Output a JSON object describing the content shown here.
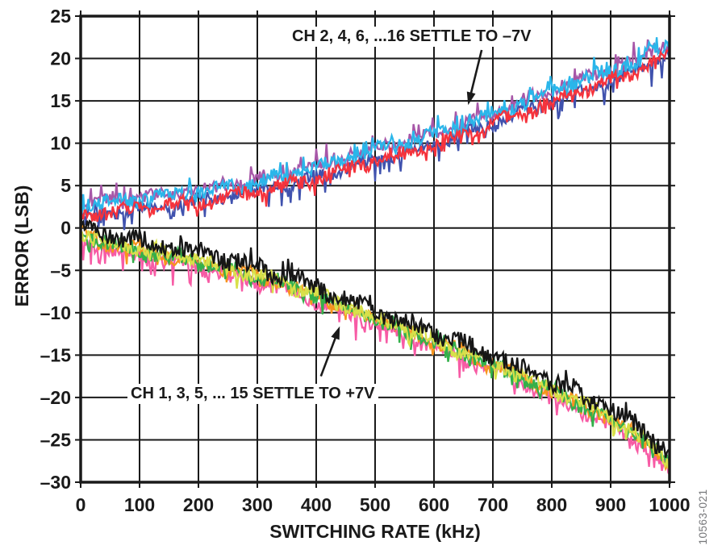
{
  "figure_number": "10563-021",
  "chart_data": {
    "type": "line",
    "title": "",
    "xlabel": "SWITCHING RATE (kHz)",
    "ylabel": "ERROR (LSB)",
    "xlim": [
      0,
      1000
    ],
    "ylim": [
      -30,
      25
    ],
    "grid": true,
    "x_ticks": [
      0,
      100,
      200,
      300,
      400,
      500,
      600,
      700,
      800,
      900,
      1000
    ],
    "x_tick_labels": [
      "0",
      "100",
      "200",
      "300",
      "400",
      "500",
      "600",
      "700",
      "800",
      "900",
      "1000"
    ],
    "y_ticks": [
      25,
      20,
      15,
      10,
      5,
      0,
      -5,
      -10,
      -15,
      -20,
      -25,
      -30
    ],
    "y_tick_labels": [
      "25",
      "20",
      "15",
      "10",
      "5",
      "0",
      "–5",
      "–10",
      "–15",
      "–20",
      "–25",
      "–30"
    ],
    "annotations": [
      {
        "name": "even-channels-label",
        "text": "CH 2, 4, 6, ...16 SETTLE TO –7V",
        "arrow_from_xy": [
          681,
          21.0
        ],
        "arrow_to_xy": [
          658,
          14.5
        ]
      },
      {
        "name": "odd-channels-label",
        "text": "CH 1, 3, 5, ... 15 SETTLE TO +7V",
        "arrow_from_xy": [
          408,
          -17.5
        ],
        "arrow_to_xy": [
          440,
          -11.6
        ]
      }
    ],
    "samples_per_trace": 460,
    "groups": [
      {
        "name": "ch-even-settle-to-minus-7v",
        "description": "CH 2, 4, 6, ...16 SETTLE TO –7V",
        "anchor_x_khz": [
          0,
          50,
          100,
          200,
          300,
          400,
          500,
          600,
          700,
          800,
          900,
          950,
          1000
        ],
        "anchor_y_lsb": [
          2.6,
          2.9,
          3.2,
          4.1,
          5.3,
          6.9,
          9.0,
          10.8,
          13.2,
          16.0,
          18.4,
          19.6,
          21.7
        ],
        "traces": [
          {
            "name": "trace-blue",
            "color": "#4052ae",
            "offset": -0.9,
            "noise": 0.75,
            "spike": 2.0,
            "spike_prob": 0.12,
            "spike_dir": -1
          },
          {
            "name": "trace-purple",
            "color": "#a757a8",
            "offset": 0.3,
            "noise": 0.75,
            "spike": 1.6,
            "spike_prob": 0.12,
            "spike_dir": 1
          },
          {
            "name": "trace-cyan",
            "color": "#2ab6ea",
            "offset": 0.1,
            "noise": 0.85,
            "spike": 1.1,
            "spike_prob": 0.15,
            "spike_dir": 1
          },
          {
            "name": "trace-red",
            "color": "#f5333c",
            "offset": -1.0,
            "noise": 0.75,
            "spike": 0.9,
            "spike_prob": 0.12,
            "spike_dir": -1
          }
        ]
      },
      {
        "name": "ch-odd-settle-to-plus-7v",
        "description": "CH 1, 3, 5, ... 15 SETTLE TO +7V",
        "anchor_x_khz": [
          0,
          50,
          100,
          200,
          300,
          400,
          500,
          600,
          700,
          800,
          900,
          950,
          1000
        ],
        "anchor_y_lsb": [
          0.3,
          -0.9,
          -1.7,
          -3.0,
          -4.8,
          -7.0,
          -9.8,
          -12.4,
          -15.2,
          -18.2,
          -21.6,
          -23.6,
          -27.0
        ],
        "traces": [
          {
            "name": "trace-pink",
            "color": "#f75ba5",
            "offset": -1.6,
            "noise": 0.8,
            "spike": 2.2,
            "spike_prob": 0.13,
            "spike_dir": -1
          },
          {
            "name": "trace-orange",
            "color": "#f7941d",
            "offset": -0.9,
            "noise": 0.8,
            "spike": 1.1,
            "spike_prob": 0.1,
            "spike_dir": -1
          },
          {
            "name": "trace-green",
            "color": "#33b04a",
            "offset": -0.9,
            "noise": 0.85,
            "spike": 1.4,
            "spike_prob": 0.12,
            "spike_dir": -1
          },
          {
            "name": "trace-yellow",
            "color": "#d8e04a",
            "offset": -0.7,
            "noise": 0.85,
            "spike": 1.0,
            "spike_prob": 0.1,
            "spike_dir": -1
          },
          {
            "name": "trace-black",
            "color": "#161616",
            "offset": 0.1,
            "noise": 1.05,
            "spike": 0.9,
            "spike_prob": 0.1,
            "spike_dir": 1
          }
        ]
      }
    ],
    "colors": {
      "grid": "#1a1a1a",
      "border": "#1a1a1a",
      "tick_text": "#1a1a1a",
      "figure_number_text": "#76777a"
    }
  }
}
